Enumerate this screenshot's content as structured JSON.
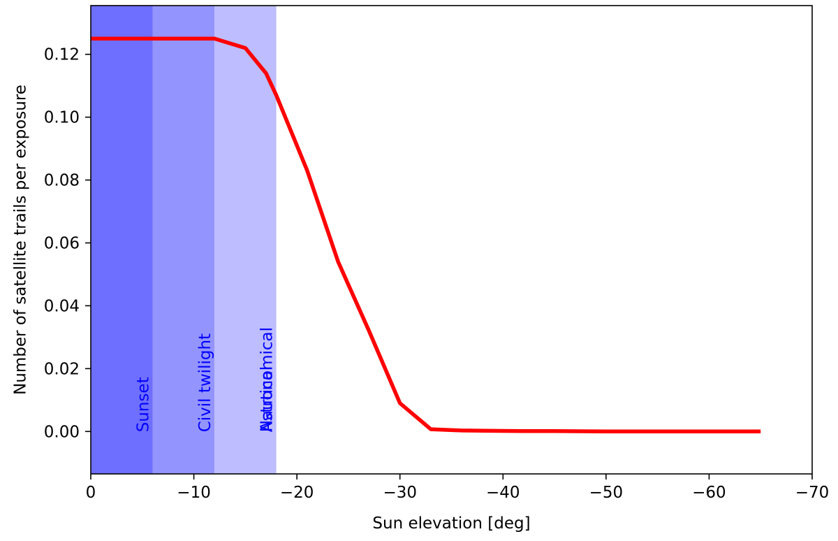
{
  "chart_data": {
    "type": "line",
    "title": "",
    "xlabel": "Sun elevation [deg]",
    "ylabel": "Number of satellite trails per exposure",
    "xlim": [
      0,
      -70
    ],
    "ylim": [
      -0.0135,
      0.1355
    ],
    "x_ticks": [
      0,
      -10,
      -20,
      -30,
      -40,
      -50,
      -60,
      -70
    ],
    "x_tick_labels": [
      "0",
      "−10",
      "−20",
      "−30",
      "−40",
      "−50",
      "−60",
      "−70"
    ],
    "y_ticks": [
      0.0,
      0.02,
      0.04,
      0.06,
      0.08,
      0.1,
      0.12
    ],
    "y_tick_labels": [
      "0.00",
      "0.02",
      "0.04",
      "0.06",
      "0.08",
      "0.10",
      "0.12"
    ],
    "grid": false,
    "series": [
      {
        "color": "#ff0000",
        "x": [
          0,
          -3,
          -6,
          -9,
          -12,
          -15,
          -17,
          -18,
          -21,
          -24,
          -27,
          -30,
          -33,
          -36,
          -39,
          -42,
          -45,
          -50,
          -55,
          -60,
          -65
        ],
        "y": [
          0.125,
          0.125,
          0.125,
          0.125,
          0.125,
          0.122,
          0.114,
          0.107,
          0.083,
          0.054,
          0.032,
          0.009,
          0.0007,
          0.0003,
          0.0002,
          0.0001,
          0.0001,
          0.0,
          0.0,
          0.0,
          0.0
        ]
      }
    ],
    "bands": [
      {
        "label": "Sunset",
        "x_from": 0,
        "x_to": -6,
        "color": "#6e6eff"
      },
      {
        "label": "Civil twilight",
        "x_from": -6,
        "x_to": -12,
        "color": "#9494ff"
      },
      {
        "label": "Nautical",
        "x_from": -12,
        "x_to": -18,
        "color": "#bdbdff"
      },
      {
        "label": "Astronomical",
        "x_from": -18,
        "x_to": -18,
        "color": "#ffffff"
      }
    ],
    "band_label_color": "#0000ff"
  }
}
